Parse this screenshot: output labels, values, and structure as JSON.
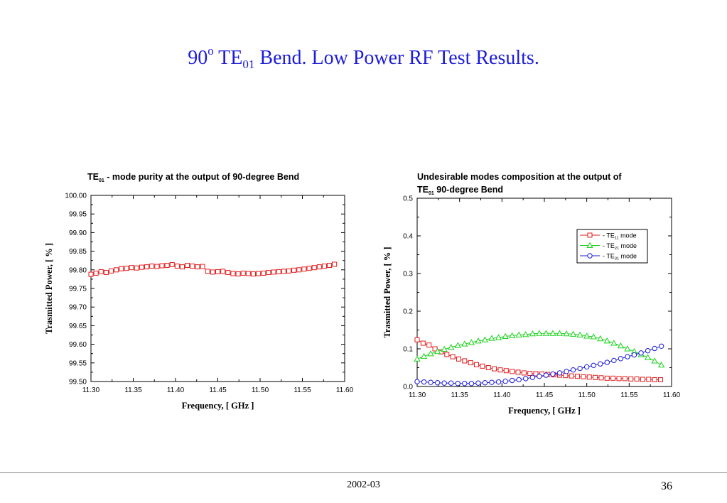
{
  "slide": {
    "title_main": "90",
    "title_sup": "o",
    "title_te": " TE",
    "title_sub": "01",
    "title_rest": " Bend. Low Power RF Test Results.",
    "footer_date": "2002-03",
    "page_number": "36"
  },
  "chart_data": [
    {
      "type": "line",
      "title_prefix": "TE",
      "title_sub": "01",
      "title_rest": " - mode purity at the output of 90-degree Bend",
      "xlabel": "Frequency,  [ GHz ]",
      "ylabel": "Trasmitted Power,  [ % ]",
      "xlim": [
        11.3,
        11.6
      ],
      "ylim": [
        99.5,
        100.0
      ],
      "xticks": [
        "11.30",
        "11.35",
        "11.40",
        "11.45",
        "11.50",
        "11.55",
        "11.60"
      ],
      "yticks": [
        "99.50",
        "99.55",
        "99.60",
        "99.65",
        "99.70",
        "99.75",
        "99.80",
        "99.85",
        "99.90",
        "99.95",
        "100.00"
      ],
      "grid": false,
      "legend": "none",
      "series": [
        {
          "color": "#e11d1d",
          "marker": "square",
          "x": [
            11.3,
            11.306,
            11.312,
            11.318,
            11.324,
            11.33,
            11.336,
            11.342,
            11.348,
            11.354,
            11.36,
            11.366,
            11.372,
            11.378,
            11.384,
            11.39,
            11.396,
            11.402,
            11.408,
            11.414,
            11.42,
            11.426,
            11.432,
            11.438,
            11.444,
            11.45,
            11.456,
            11.462,
            11.468,
            11.474,
            11.48,
            11.486,
            11.492,
            11.498,
            11.504,
            11.51,
            11.516,
            11.522,
            11.528,
            11.534,
            11.54,
            11.546,
            11.552,
            11.558,
            11.564,
            11.57,
            11.576,
            11.582,
            11.588
          ],
          "y": [
            99.788,
            99.791,
            99.795,
            99.793,
            99.797,
            99.8,
            99.803,
            99.804,
            99.806,
            99.805,
            99.807,
            99.808,
            99.81,
            99.809,
            99.811,
            99.812,
            99.814,
            99.81,
            99.808,
            99.812,
            99.81,
            99.808,
            99.809,
            99.796,
            99.794,
            99.795,
            99.796,
            99.793,
            99.79,
            99.789,
            99.791,
            99.79,
            99.789,
            99.79,
            99.791,
            99.793,
            99.794,
            99.795,
            99.796,
            99.797,
            99.799,
            99.8,
            99.802,
            99.804,
            99.806,
            99.808,
            99.81,
            99.812,
            99.815
          ]
        }
      ]
    },
    {
      "type": "line",
      "title_line1": "Undesirable modes composition at the output of",
      "title_prefix": "TE",
      "title_sub": "01",
      "title_rest": "  90-degree Bend",
      "xlabel": "Frequency, [ GHz ]",
      "ylabel": "Trasmitted Power,  [ % ]",
      "xlim": [
        11.3,
        11.6
      ],
      "ylim": [
        0.0,
        0.5
      ],
      "xticks": [
        "11.30",
        "11.35",
        "11.40",
        "11.45",
        "11.50",
        "11.55",
        "11.60"
      ],
      "yticks": [
        "0.0",
        "0.1",
        "0.2",
        "0.3",
        "0.4",
        "0.5"
      ],
      "grid": false,
      "legend": "top-right",
      "series": [
        {
          "name": "TE11",
          "label_prefix": "-  TE",
          "label_sub": "11",
          "label_suffix": " mode",
          "color": "#e11d1d",
          "marker": "square",
          "x": [
            11.3,
            11.307,
            11.314,
            11.321,
            11.328,
            11.335,
            11.342,
            11.349,
            11.356,
            11.363,
            11.37,
            11.377,
            11.384,
            11.391,
            11.398,
            11.405,
            11.412,
            11.419,
            11.426,
            11.433,
            11.44,
            11.447,
            11.454,
            11.461,
            11.468,
            11.475,
            11.482,
            11.489,
            11.496,
            11.503,
            11.51,
            11.517,
            11.524,
            11.531,
            11.538,
            11.545,
            11.552,
            11.559,
            11.566,
            11.573,
            11.58,
            11.587
          ],
          "y": [
            0.124,
            0.115,
            0.11,
            0.1,
            0.092,
            0.085,
            0.079,
            0.073,
            0.068,
            0.063,
            0.058,
            0.054,
            0.05,
            0.047,
            0.044,
            0.042,
            0.04,
            0.038,
            0.036,
            0.035,
            0.034,
            0.033,
            0.032,
            0.031,
            0.03,
            0.029,
            0.028,
            0.027,
            0.026,
            0.025,
            0.024,
            0.023,
            0.022,
            0.022,
            0.021,
            0.021,
            0.02,
            0.02,
            0.019,
            0.019,
            0.018,
            0.018
          ]
        },
        {
          "name": "TE21",
          "label_prefix": "-  TE",
          "label_sub": "21",
          "label_suffix": " mode",
          "color": "#19d319",
          "marker": "triangle",
          "x": [
            11.3,
            11.308,
            11.316,
            11.324,
            11.332,
            11.34,
            11.348,
            11.356,
            11.364,
            11.372,
            11.38,
            11.388,
            11.396,
            11.404,
            11.412,
            11.42,
            11.428,
            11.436,
            11.444,
            11.452,
            11.46,
            11.468,
            11.476,
            11.484,
            11.492,
            11.5,
            11.508,
            11.516,
            11.524,
            11.532,
            11.54,
            11.548,
            11.556,
            11.564,
            11.572,
            11.58,
            11.588
          ],
          "y": [
            0.073,
            0.08,
            0.087,
            0.093,
            0.099,
            0.104,
            0.109,
            0.113,
            0.117,
            0.121,
            0.124,
            0.128,
            0.13,
            0.133,
            0.135,
            0.137,
            0.138,
            0.14,
            0.141,
            0.141,
            0.141,
            0.141,
            0.14,
            0.139,
            0.137,
            0.134,
            0.132,
            0.127,
            0.121,
            0.115,
            0.108,
            0.1,
            0.093,
            0.085,
            0.077,
            0.068,
            0.057
          ]
        },
        {
          "name": "TE31",
          "label_prefix": "-  TE",
          "label_sub": "31",
          "label_suffix": " mode",
          "color": "#1b1bd6",
          "marker": "circle",
          "x": [
            11.3,
            11.308,
            11.316,
            11.324,
            11.332,
            11.34,
            11.348,
            11.356,
            11.364,
            11.372,
            11.38,
            11.388,
            11.396,
            11.404,
            11.412,
            11.42,
            11.428,
            11.436,
            11.444,
            11.452,
            11.46,
            11.468,
            11.476,
            11.484,
            11.492,
            11.5,
            11.508,
            11.516,
            11.524,
            11.532,
            11.54,
            11.548,
            11.556,
            11.564,
            11.572,
            11.58,
            11.588
          ],
          "y": [
            0.013,
            0.012,
            0.011,
            0.01,
            0.009,
            0.009,
            0.008,
            0.008,
            0.008,
            0.009,
            0.01,
            0.011,
            0.012,
            0.014,
            0.016,
            0.018,
            0.021,
            0.024,
            0.027,
            0.03,
            0.033,
            0.036,
            0.04,
            0.044,
            0.048,
            0.052,
            0.056,
            0.06,
            0.064,
            0.069,
            0.074,
            0.079,
            0.084,
            0.089,
            0.095,
            0.101,
            0.107
          ]
        }
      ]
    }
  ]
}
